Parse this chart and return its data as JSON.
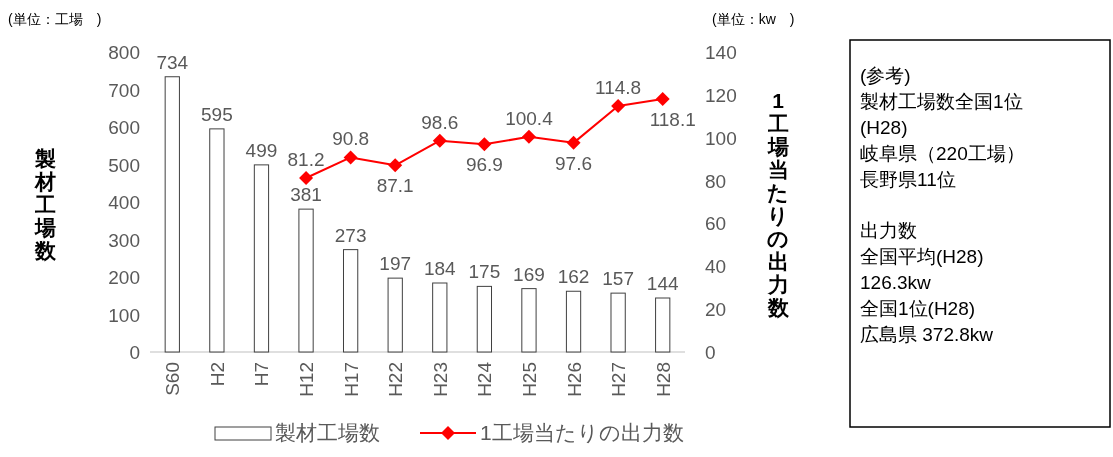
{
  "chart_data": [
    {
      "type": "bar",
      "categories": [
        "S60",
        "H2",
        "H7",
        "H12",
        "H17",
        "H22",
        "H23",
        "H24",
        "H25",
        "H26",
        "H27",
        "H28"
      ],
      "series": [
        {
          "name": "製材工場数",
          "type": "bar",
          "color": "#ffffff",
          "values": [
            734,
            595,
            499,
            381,
            273,
            197,
            184,
            175,
            169,
            162,
            157,
            144
          ]
        },
        {
          "name": "1工場当たりの出力数",
          "type": "line",
          "axis": "y2",
          "color": "#ff0000",
          "marker": "diamond",
          "values": [
            null,
            null,
            null,
            81.2,
            90.8,
            87.1,
            98.6,
            96.9,
            100.4,
            97.6,
            114.8,
            118.1
          ]
        }
      ],
      "ylabel": "製材工場数",
      "y2label": "1工場当たりの出力数",
      "ylim": [
        0,
        800
      ],
      "yticks": [
        0,
        100,
        200,
        300,
        400,
        500,
        600,
        700,
        800
      ],
      "y2lim": [
        0,
        140
      ],
      "y2ticks": [
        0,
        20,
        40,
        60,
        80,
        100,
        120,
        140
      ],
      "data_labels": true,
      "legend": "bottom",
      "annotations": [
        "(単位：工場　)",
        "(単位：kw　)"
      ]
    },
    {
      "type": "other",
      "annotations": [
        "(参考)",
        "製材工場数全国1位",
        "(H28)",
        "岐阜県（220工場）",
        "長野県11位",
        "出力数",
        "全国平均(H28)",
        "126.3kw",
        "全国1位(H28)",
        "広島県 372.8kw"
      ]
    }
  ]
}
